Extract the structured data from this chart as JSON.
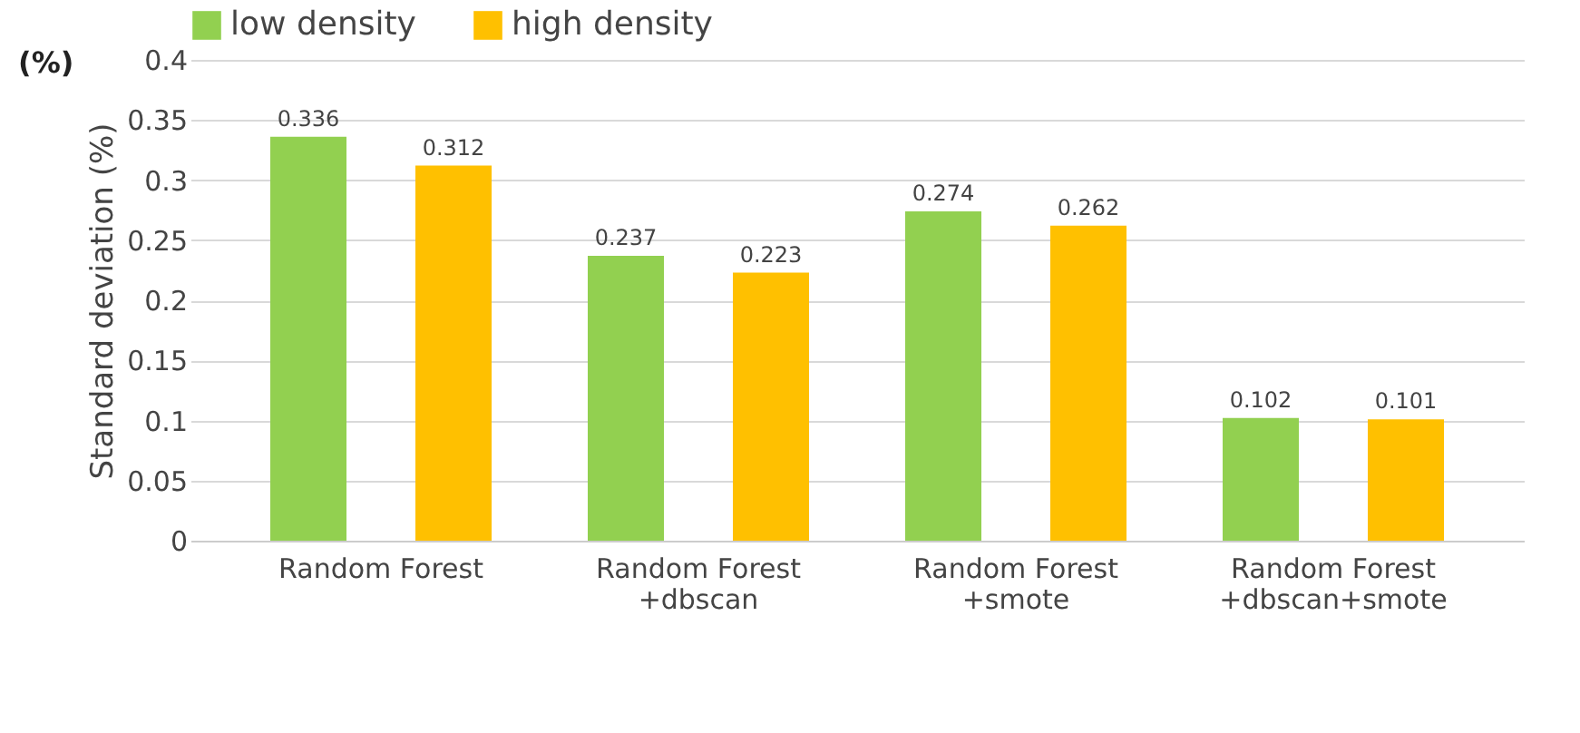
{
  "chart_data": {
    "type": "bar",
    "ylabel": "Standard deviation (%)",
    "annotations": [
      "(%)"
    ],
    "categories": [
      "Random Forest",
      "Random Forest\n+dbscan",
      "Random Forest\n+smote",
      "Random Forest\n+dbscan+smote"
    ],
    "series": [
      {
        "name": "low density",
        "color": "#92d050",
        "values": [
          0.336,
          0.237,
          0.274,
          0.102
        ]
      },
      {
        "name": "high density",
        "color": "#ffc000",
        "values": [
          0.312,
          0.223,
          0.262,
          0.101
        ]
      }
    ],
    "ylim": [
      0,
      0.4
    ],
    "yticks": [
      0,
      0.05,
      0.1,
      0.15,
      0.2,
      0.25,
      0.3,
      0.35,
      0.4
    ],
    "grid": "y",
    "legend": "top",
    "data_labels": true
  }
}
